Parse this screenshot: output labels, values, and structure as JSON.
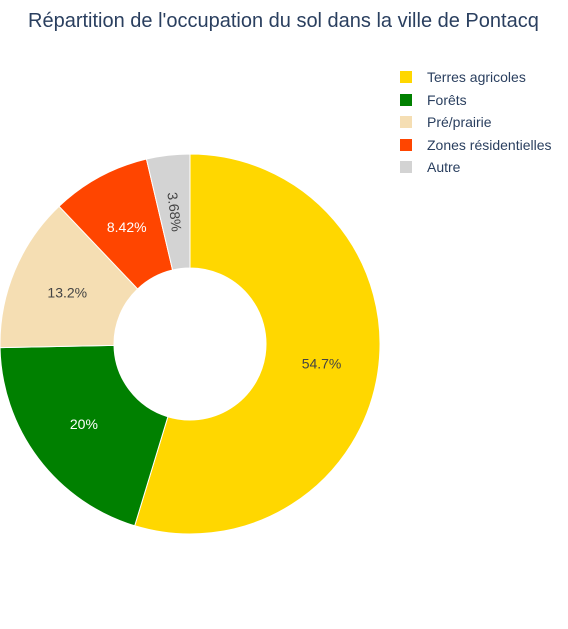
{
  "chart_data": {
    "type": "pie",
    "hole": true,
    "title": "Répartition de l'occupation du sol dans la ville de Pontacq",
    "categories": [
      "Terres agricoles",
      "Forêts",
      "Pré/prairie",
      "Zones résidentielles",
      "Autre"
    ],
    "values": [
      54.7,
      20,
      13.2,
      8.42,
      3.68
    ],
    "labels": [
      "54.7%",
      "20%",
      "13.2%",
      "8.42%",
      "3.68%"
    ],
    "colors": [
      "#FFD700",
      "#008000",
      "#F5DEB3",
      "#FF4500",
      "#D3D3D3"
    ],
    "label_colors": [
      "#444444",
      "#ffffff",
      "#444444",
      "#ffffff",
      "#444444"
    ],
    "legend_position": "top-right"
  }
}
